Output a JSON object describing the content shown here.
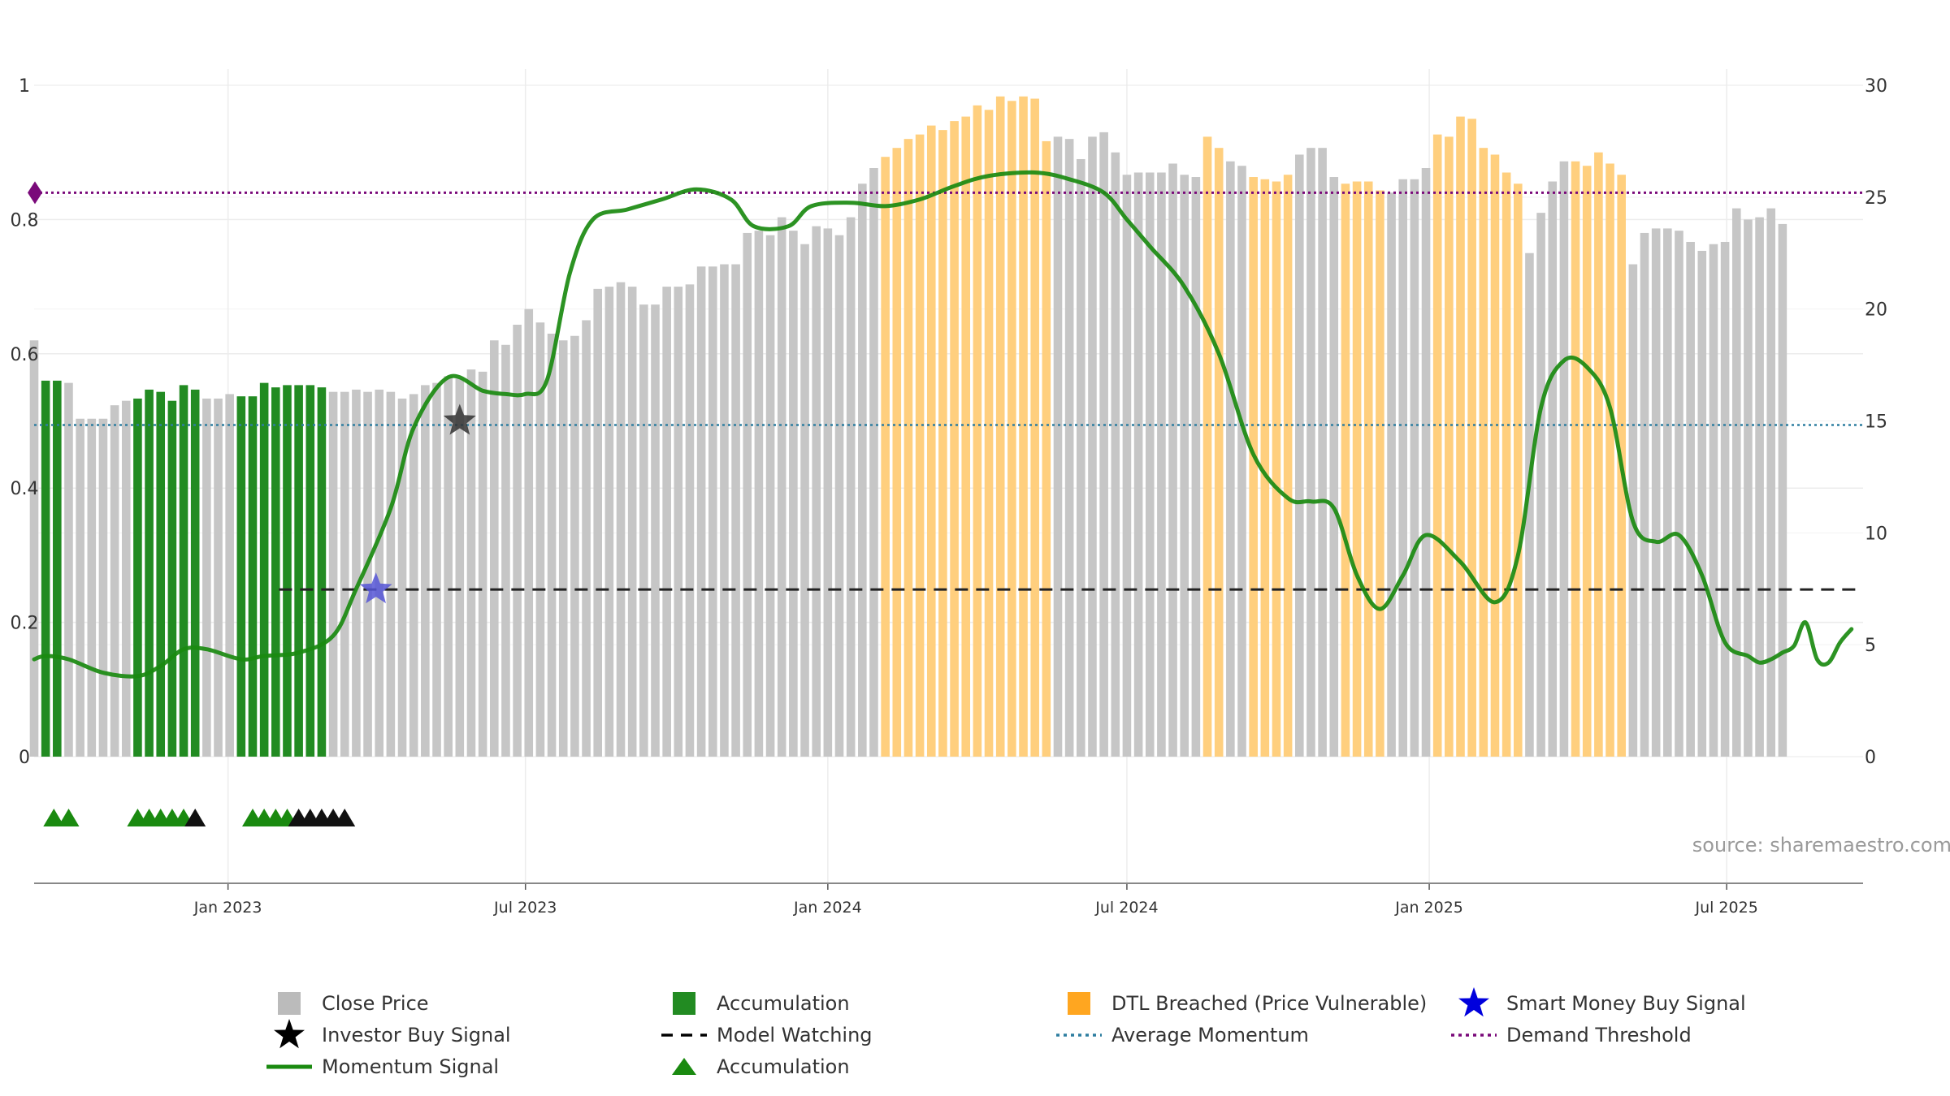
{
  "source": "source: sharemaestro.com",
  "colors": {
    "close": "#c6c6c6",
    "accumulation": "#228b22",
    "dtl": "#ffcf7e",
    "momentum": "#1a8a10",
    "momentum_faded": "#4e8a36",
    "investor_star": "#333333",
    "smart_star": "#5555d6",
    "avg_momentum": "#2e7ea0",
    "demand": "#7a0a7a",
    "watching": "#222222",
    "triangle_green": "#1a8a10",
    "triangle_black": "#111111"
  },
  "legend": [
    {
      "label": "Close Price",
      "symbol": "square",
      "color": "#bbbbbb"
    },
    {
      "label": "Accumulation",
      "symbol": "square",
      "color": "#228b22"
    },
    {
      "label": "DTL Breached (Price Vulnerable)",
      "symbol": "square",
      "color": "#ffa620"
    },
    {
      "label": "Smart Money Buy Signal",
      "symbol": "star",
      "color": "#0000dd"
    },
    {
      "label": "Investor Buy Signal",
      "symbol": "star",
      "color": "#000000"
    },
    {
      "label": "Model Watching",
      "symbol": "dash",
      "color": "#000000"
    },
    {
      "label": "Average Momentum",
      "symbol": "dot",
      "color": "#2e7ea0"
    },
    {
      "label": "Demand Threshold",
      "symbol": "dot",
      "color": "#7a0a7a"
    },
    {
      "label": "Momentum Signal",
      "symbol": "line",
      "color": "#1a8a10"
    },
    {
      "label": "Accumulation",
      "symbol": "triangle",
      "color": "#1a8a10"
    }
  ],
  "chart_data": {
    "type": "bar",
    "title": "",
    "x_range": [
      "2022-09-05",
      "2025-09-22"
    ],
    "x_ticks": [
      {
        "date": "2023-01-01",
        "label": "Jan 2023"
      },
      {
        "date": "2023-07-01",
        "label": "Jul 2023"
      },
      {
        "date": "2024-01-01",
        "label": "Jan 2024"
      },
      {
        "date": "2024-07-01",
        "label": "Jul 2024"
      },
      {
        "date": "2025-01-01",
        "label": "Jan 2025"
      },
      {
        "date": "2025-07-01",
        "label": "Jul 2025"
      }
    ],
    "y_left": {
      "min": 0,
      "max": 1,
      "ticks": [
        "0",
        "0.2",
        "0.4",
        "0.6",
        "0.8",
        "1"
      ]
    },
    "y_right": {
      "min": 0,
      "max": 30,
      "ticks": [
        "0",
        "5",
        "10",
        "15",
        "20",
        "25",
        "30"
      ]
    },
    "bars": {
      "start_date": "2022-09-05",
      "interval_days": 7,
      "values": [
        18.6,
        16.8,
        16.8,
        16.7,
        15.1,
        15.1,
        15.1,
        15.7,
        15.9,
        16.0,
        16.4,
        16.3,
        15.9,
        16.6,
        16.4,
        16.0,
        16.0,
        16.2,
        16.1,
        16.1,
        16.7,
        16.5,
        16.6,
        16.6,
        16.6,
        16.5,
        16.3,
        16.3,
        16.4,
        16.3,
        16.4,
        16.3,
        16.0,
        16.2,
        16.6,
        16.7,
        17.0,
        16.9,
        17.3,
        17.2,
        18.6,
        18.4,
        19.3,
        20.0,
        19.4,
        18.9,
        18.6,
        18.8,
        19.5,
        20.9,
        21.0,
        21.2,
        21.0,
        20.2,
        20.2,
        21.0,
        21.0,
        21.1,
        21.9,
        21.9,
        22.0,
        22.0,
        23.4,
        23.5,
        23.3,
        24.1,
        23.5,
        22.9,
        23.7,
        23.6,
        23.3,
        24.1,
        25.6,
        26.3,
        26.8,
        27.2,
        27.6,
        27.8,
        28.2,
        28.0,
        28.4,
        28.6,
        29.1,
        28.9,
        29.5,
        29.3,
        29.5,
        29.4,
        27.5,
        27.7,
        27.6,
        26.7,
        27.7,
        27.9,
        27.0,
        26.0,
        26.1,
        26.1,
        26.1,
        26.5,
        26.0,
        25.9,
        27.7,
        27.2,
        26.6,
        26.4,
        25.9,
        25.8,
        25.7,
        26.0,
        26.9,
        27.2,
        27.2,
        25.9,
        25.6,
        25.7,
        25.7,
        25.3,
        25.2,
        25.8,
        25.8,
        26.3,
        27.8,
        27.7,
        28.6,
        28.5,
        27.2,
        26.9,
        26.1,
        25.6,
        22.5,
        24.3,
        25.7,
        26.6,
        26.6,
        26.4,
        27.0,
        26.5,
        26.0,
        22.0,
        23.4,
        23.6,
        23.6,
        23.5,
        23.0,
        22.6,
        22.9,
        23.0,
        24.5,
        24.0,
        24.1,
        24.5,
        23.8
      ],
      "accumulation_weeks": [
        1,
        2,
        9,
        10,
        11,
        12,
        13,
        14,
        18,
        19,
        20,
        21,
        22,
        23,
        24,
        25
      ],
      "dtl_ranges": [
        [
          74,
          88
        ],
        [
          102,
          103
        ],
        [
          106,
          109
        ],
        [
          114,
          117
        ],
        [
          122,
          129
        ],
        [
          134,
          138
        ]
      ]
    },
    "series": [
      {
        "name": "Momentum Signal",
        "axis": "left",
        "x": [
          "2022-09-05",
          "2022-09-12",
          "2022-09-26",
          "2022-10-17",
          "2022-11-07",
          "2022-11-21",
          "2022-12-05",
          "2022-12-19",
          "2023-01-09",
          "2023-01-23",
          "2023-02-13",
          "2023-03-06",
          "2023-03-20",
          "2023-04-10",
          "2023-04-24",
          "2023-05-15",
          "2023-06-05",
          "2023-06-19",
          "2023-07-01",
          "2023-07-14",
          "2023-07-28",
          "2023-08-11",
          "2023-09-01",
          "2023-09-22",
          "2023-10-13",
          "2023-11-03",
          "2023-11-17",
          "2023-12-08",
          "2023-12-22",
          "2024-01-15",
          "2024-02-05",
          "2024-02-26",
          "2024-03-18",
          "2024-04-08",
          "2024-05-06",
          "2024-05-27",
          "2024-06-17",
          "2024-07-01",
          "2024-07-15",
          "2024-08-05",
          "2024-08-26",
          "2024-09-16",
          "2024-10-07",
          "2024-10-21",
          "2024-11-04",
          "2024-11-18",
          "2024-12-02",
          "2024-12-16",
          "2024-12-30",
          "2025-01-20",
          "2025-02-10",
          "2025-02-24",
          "2025-03-10",
          "2025-03-24",
          "2025-04-07",
          "2025-04-21",
          "2025-05-05",
          "2025-05-19",
          "2025-06-02",
          "2025-06-16",
          "2025-06-30",
          "2025-07-14",
          "2025-07-21",
          "2025-07-28",
          "2025-08-04",
          "2025-08-11",
          "2025-08-18",
          "2025-08-25",
          "2025-09-01",
          "2025-09-08",
          "2025-09-15"
        ],
        "y": [
          0.145,
          0.15,
          0.145,
          0.125,
          0.12,
          0.135,
          0.16,
          0.16,
          0.145,
          0.15,
          0.155,
          0.18,
          0.25,
          0.37,
          0.49,
          0.565,
          0.545,
          0.54,
          0.54,
          0.56,
          0.72,
          0.8,
          0.815,
          0.83,
          0.845,
          0.83,
          0.79,
          0.79,
          0.82,
          0.825,
          0.82,
          0.83,
          0.85,
          0.865,
          0.87,
          0.86,
          0.84,
          0.8,
          0.76,
          0.7,
          0.6,
          0.45,
          0.385,
          0.38,
          0.37,
          0.27,
          0.22,
          0.27,
          0.33,
          0.29,
          0.23,
          0.3,
          0.52,
          0.59,
          0.58,
          0.52,
          0.35,
          0.32,
          0.33,
          0.27,
          0.17,
          0.15,
          0.14,
          0.145,
          0.155,
          0.165,
          0.2,
          0.145,
          0.14,
          0.17,
          0.19
        ]
      }
    ],
    "average_momentum": 0.494,
    "demand_threshold": 0.84,
    "model_watching": {
      "value": 0.249,
      "from": "2023-02-01",
      "to": "2025-09-22"
    },
    "investor_buy_signal": {
      "date": "2023-05-22",
      "value": 0.5
    },
    "smart_money_buy_signal": {
      "date": "2023-04-01",
      "value": 0.249
    },
    "accumulation_triangles": [
      {
        "date": "2022-09-17",
        "color": "green"
      },
      {
        "date": "2022-09-26",
        "color": "green"
      },
      {
        "date": "2022-11-07",
        "color": "green"
      },
      {
        "date": "2022-11-14",
        "color": "green"
      },
      {
        "date": "2022-11-21",
        "color": "green"
      },
      {
        "date": "2022-11-28",
        "color": "green"
      },
      {
        "date": "2022-12-05",
        "color": "green"
      },
      {
        "date": "2022-12-12",
        "color": "black"
      },
      {
        "date": "2023-01-16",
        "color": "green"
      },
      {
        "date": "2023-01-23",
        "color": "green"
      },
      {
        "date": "2023-01-30",
        "color": "green"
      },
      {
        "date": "2023-02-06",
        "color": "green"
      },
      {
        "date": "2023-02-13",
        "color": "black"
      },
      {
        "date": "2023-02-20",
        "color": "black"
      },
      {
        "date": "2023-02-27",
        "color": "black"
      },
      {
        "date": "2023-03-06",
        "color": "black"
      },
      {
        "date": "2023-03-13",
        "color": "black"
      }
    ]
  }
}
